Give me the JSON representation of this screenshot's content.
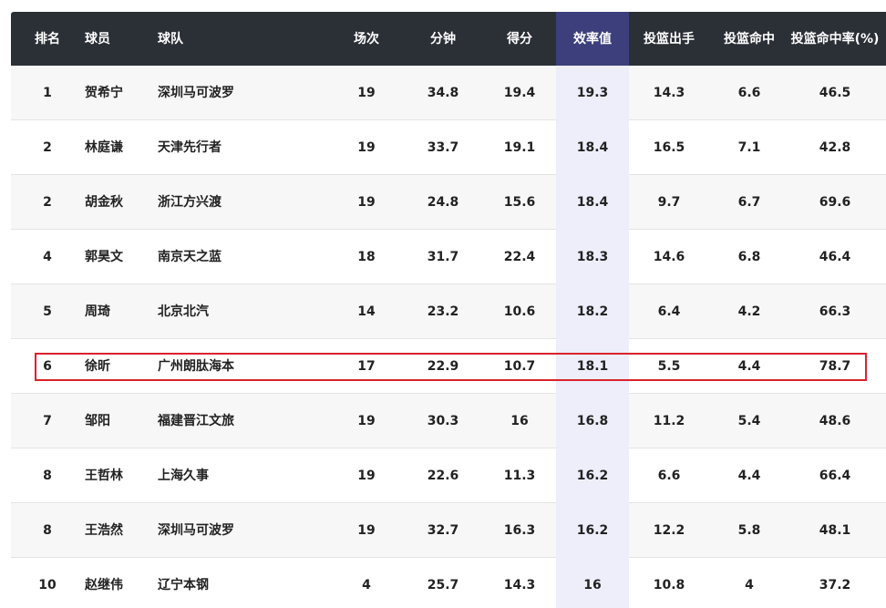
{
  "table": {
    "columns": [
      "排名",
      "球员",
      "球队",
      "场次",
      "分钟",
      "得分",
      "效率值",
      "投篮出手",
      "投篮命中",
      "投篮命中率(%)"
    ],
    "rows": [
      [
        1,
        "贺希宁",
        "深圳马可波罗",
        19,
        34.8,
        19.4,
        19.3,
        14.3,
        6.6,
        46.5
      ],
      [
        2,
        "林庭谦",
        "天津先行者",
        19,
        33.7,
        19.1,
        18.4,
        16.5,
        7.1,
        42.8
      ],
      [
        2,
        "胡金秋",
        "浙江方兴渡",
        19,
        24.8,
        15.6,
        18.4,
        9.7,
        6.7,
        69.6
      ],
      [
        4,
        "郭昊文",
        "南京天之蓝",
        18,
        31.7,
        22.4,
        18.3,
        14.6,
        6.8,
        46.4
      ],
      [
        5,
        "周琦",
        "北京北汽",
        14,
        23.2,
        10.6,
        18.2,
        6.4,
        4.2,
        66.3
      ],
      [
        6,
        "徐昕",
        "广州朗肽海本",
        17,
        22.9,
        10.7,
        18.1,
        5.5,
        4.4,
        78.7
      ],
      [
        7,
        "邹阳",
        "福建晋江文旅",
        19,
        30.3,
        16,
        16.8,
        11.2,
        5.4,
        48.6
      ],
      [
        8,
        "王哲林",
        "上海久事",
        19,
        22.6,
        11.3,
        16.2,
        6.6,
        4.4,
        66.4
      ],
      [
        8,
        "王浩然",
        "深圳马可波罗",
        19,
        32.7,
        16.3,
        16.2,
        12.2,
        5.8,
        48.1
      ],
      [
        10,
        "赵继伟",
        "辽宁本钢",
        4,
        25.7,
        14.3,
        16,
        10.8,
        4,
        37.2
      ]
    ]
  }
}
